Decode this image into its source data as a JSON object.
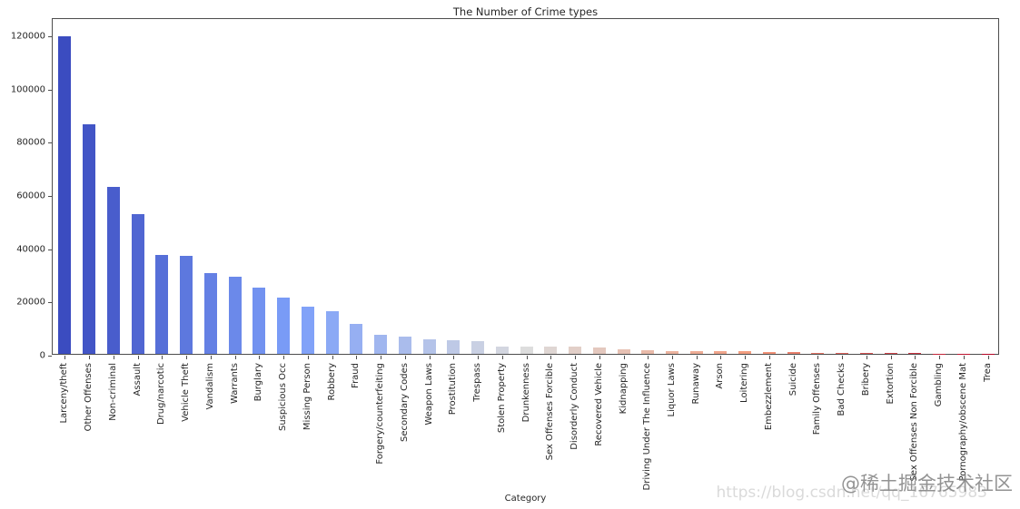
{
  "figure": {
    "title": "The Number of Crime types",
    "xlabel": "Category"
  },
  "watermark": {
    "main": "@稀土掘金技术社区",
    "url": "https://blog.csdn.net/qq_16765983"
  },
  "chart_data": {
    "type": "bar",
    "title": "The Number of Crime types",
    "xlabel": "Category",
    "ylabel": "",
    "ylim": [
      0,
      126400
    ],
    "yticks": [
      0,
      20000,
      40000,
      60000,
      80000,
      100000,
      120000
    ],
    "grid": false,
    "legend": "none",
    "palette": "coolwarm",
    "categories": [
      "Larceny/theft",
      "Other Offenses",
      "Non-criminal",
      "Assault",
      "Drug/narcotic",
      "Vehicle Theft",
      "Vandalism",
      "Warrants",
      "Burglary",
      "Suspicious Occ",
      "Missing Person",
      "Robbery",
      "Fraud",
      "Forgery/counterfeiting",
      "Secondary Codes",
      "Weapon Laws",
      "Prostitution",
      "Trespass",
      "Stolen Property",
      "Drunkenness",
      "Sex Offenses Forcible",
      "Disorderly Conduct",
      "Recovered Vehicle",
      "Kidnapping",
      "Driving Under The Influence",
      "Liquor Laws",
      "Runaway",
      "Arson",
      "Loitering",
      "Embezzlement",
      "Suicide",
      "Family Offenses",
      "Bad Checks",
      "Bribery",
      "Extortion",
      "Sex Offenses Non Forcible",
      "Gambling",
      "Pornography/obscene Mat",
      "Trea"
    ],
    "values": [
      119200,
      86200,
      62600,
      52400,
      37200,
      36700,
      30400,
      29000,
      24800,
      21100,
      17600,
      15900,
      11350,
      7150,
      6500,
      5600,
      5000,
      4800,
      2800,
      2800,
      2800,
      2700,
      2300,
      1700,
      1300,
      1200,
      1100,
      950,
      900,
      800,
      550,
      450,
      350,
      300,
      250,
      200,
      150,
      60,
      20
    ],
    "bar_colors": [
      "#3b4cc0",
      "#4255c6",
      "#495dcc",
      "#5066d2",
      "#566fd8",
      "#5d78de",
      "#6480e4",
      "#6b89ea",
      "#7292f0",
      "#799bf6",
      "#81a2f8",
      "#8ba9f5",
      "#96aff2",
      "#a0b6ef",
      "#aabcec",
      "#b4c3e9",
      "#bec9e6",
      "#c9d0e3",
      "#d3d6e0",
      "#dddddd",
      "#dfd6d3",
      "#e2cfc8",
      "#e4c8be",
      "#e7c1b4",
      "#e9baa9",
      "#ecb39f",
      "#eeac95",
      "#f0a58b",
      "#f39e80",
      "#f19277",
      "#ea826e",
      "#e37365",
      "#dc635c",
      "#d55353",
      "#cf434a",
      "#c83341",
      "#c22438",
      "#bb142f",
      "#b40426"
    ]
  }
}
